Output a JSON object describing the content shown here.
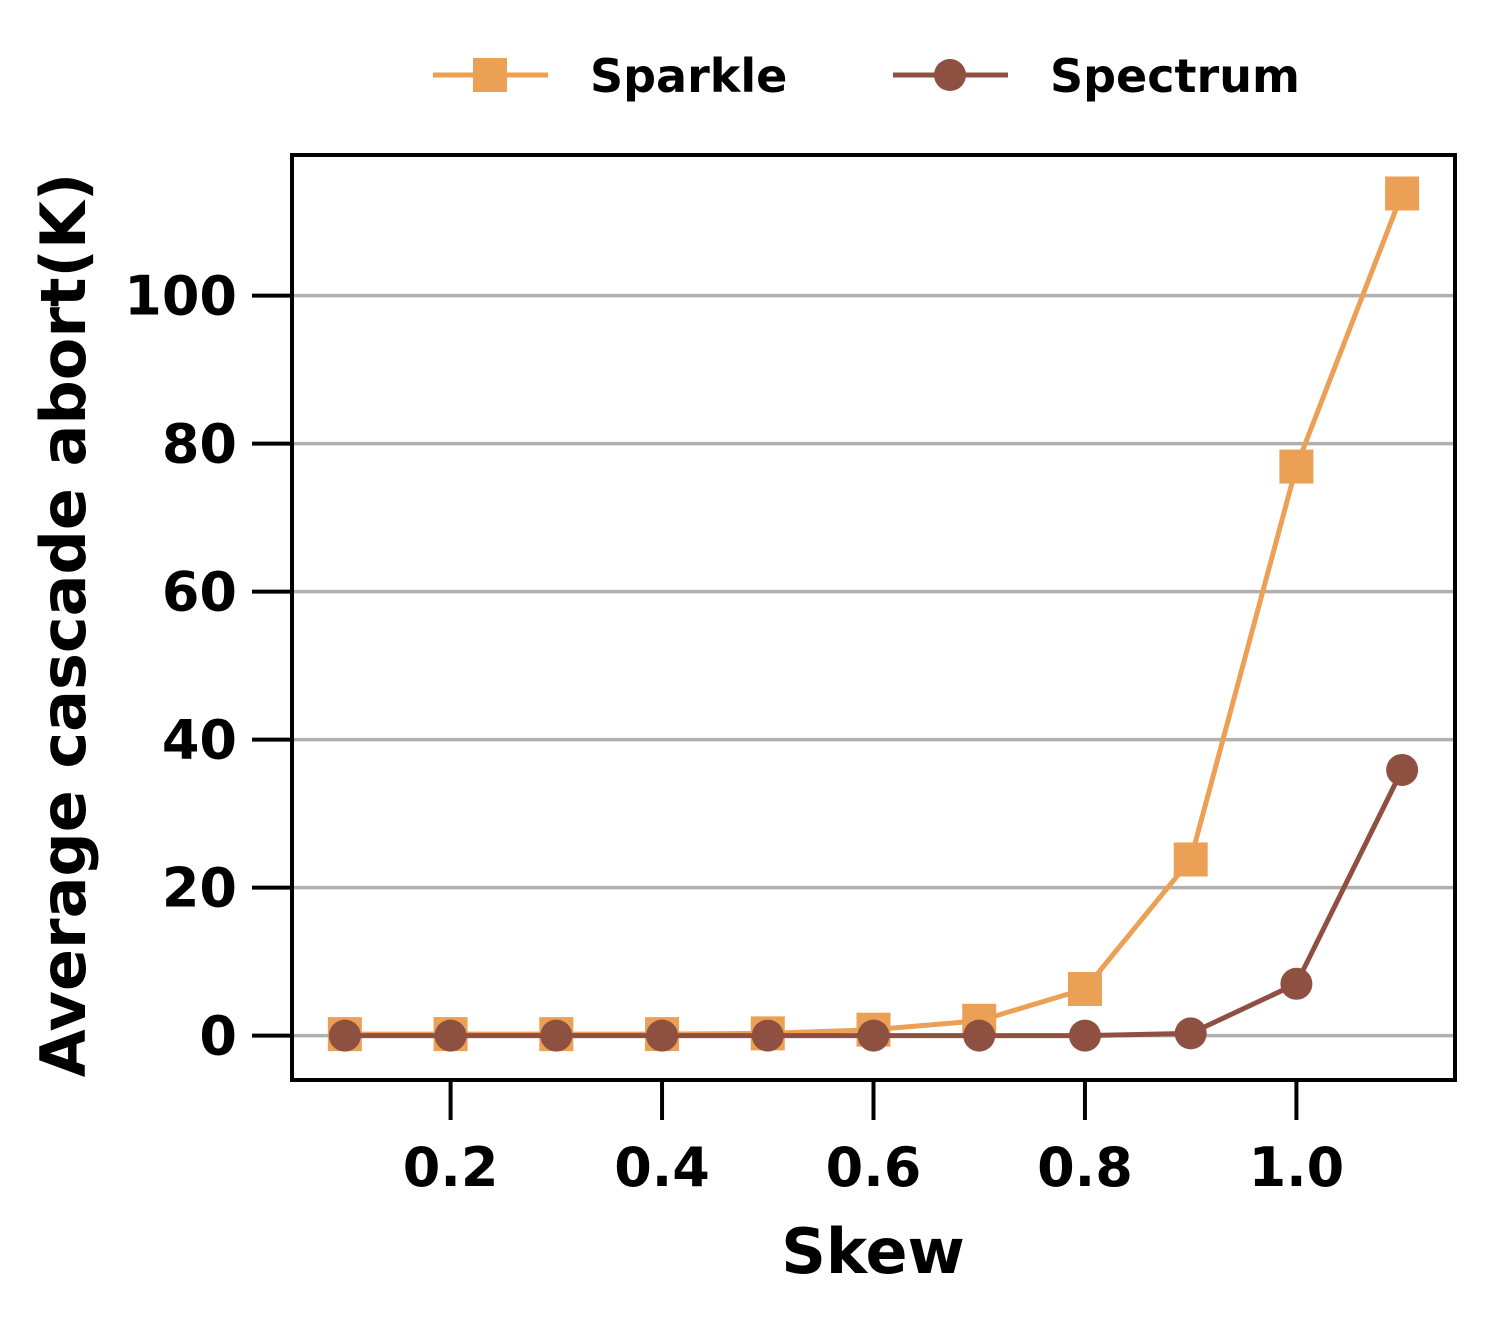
{
  "chart_data": {
    "type": "line",
    "title": "",
    "xlabel": "Skew",
    "ylabel": "Average cascade abort(K)",
    "x": [
      0.1,
      0.2,
      0.3,
      0.4,
      0.5,
      0.6,
      0.7,
      0.8,
      0.9,
      1.0,
      1.1
    ],
    "xlim": [
      0.05,
      1.15
    ],
    "ylim": [
      -6,
      119
    ],
    "xticks": [
      0.2,
      0.4,
      0.6,
      0.8,
      1.0
    ],
    "xtick_labels": [
      "0.2",
      "0.4",
      "0.6",
      "0.8",
      "1.0"
    ],
    "yticks": [
      0,
      20,
      40,
      60,
      80,
      100
    ],
    "ytick_labels": [
      "0",
      "20",
      "40",
      "60",
      "80",
      "100"
    ],
    "grid": "horizontal",
    "legend_position": "top-center",
    "series": [
      {
        "name": "Sparkle",
        "marker": "square",
        "color": "#EBA055",
        "values": [
          0.2,
          0.2,
          0.2,
          0.2,
          0.3,
          0.8,
          2.0,
          6.3,
          23.8,
          76.9,
          113.8
        ]
      },
      {
        "name": "Spectrum",
        "marker": "circle",
        "color": "#8E5040",
        "values": [
          0.0,
          0.0,
          0.0,
          0.0,
          0.0,
          0.0,
          0.0,
          0.0,
          0.3,
          7.0,
          35.9
        ]
      }
    ]
  }
}
